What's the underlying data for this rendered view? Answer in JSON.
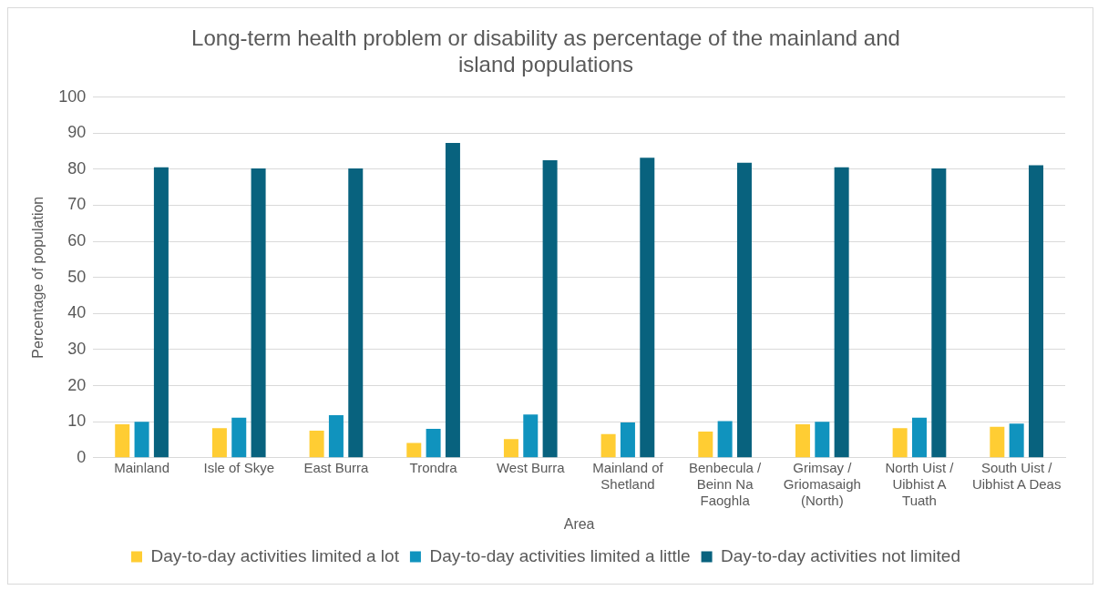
{
  "chart_data": {
    "type": "bar",
    "title": "Long-term health problem or disability as percentage of the mainland and island populations",
    "xlabel": "Area",
    "ylabel": "Percentage of population",
    "categories": [
      "Mainland",
      "Isle of Skye",
      "East Burra",
      "Trondra",
      "West Burra",
      "Mainland of Shetland",
      "Benbecula / Beinn Na Faoghla",
      "Grimsay / Griomasaigh (North)",
      "North Uist / Uibhist A Tuath",
      "South Uist / Uibhist A Deas"
    ],
    "series": [
      {
        "name": "Day-to-day activities limited a lot",
        "color": "#ffcd33",
        "values": [
          9.3,
          8.2,
          7.5,
          4.1,
          5.2,
          6.6,
          7.3,
          9.3,
          8.2,
          8.6
        ]
      },
      {
        "name": "Day-to-day activities limited a little",
        "color": "#1093be",
        "values": [
          10.0,
          11.1,
          11.8,
          8.0,
          12.0,
          9.8,
          10.2,
          10.0,
          11.1,
          9.5
        ]
      },
      {
        "name": "Day-to-day activities not limited",
        "color": "#08627e",
        "values": [
          80.5,
          80.2,
          80.2,
          87.3,
          82.5,
          83.2,
          81.8,
          80.5,
          80.2,
          81.1
        ]
      }
    ],
    "ylim": [
      0,
      100
    ],
    "yticks": [
      0,
      10,
      20,
      30,
      40,
      50,
      60,
      70,
      80,
      90,
      100
    ],
    "grid": "y",
    "legend": "bottom"
  }
}
